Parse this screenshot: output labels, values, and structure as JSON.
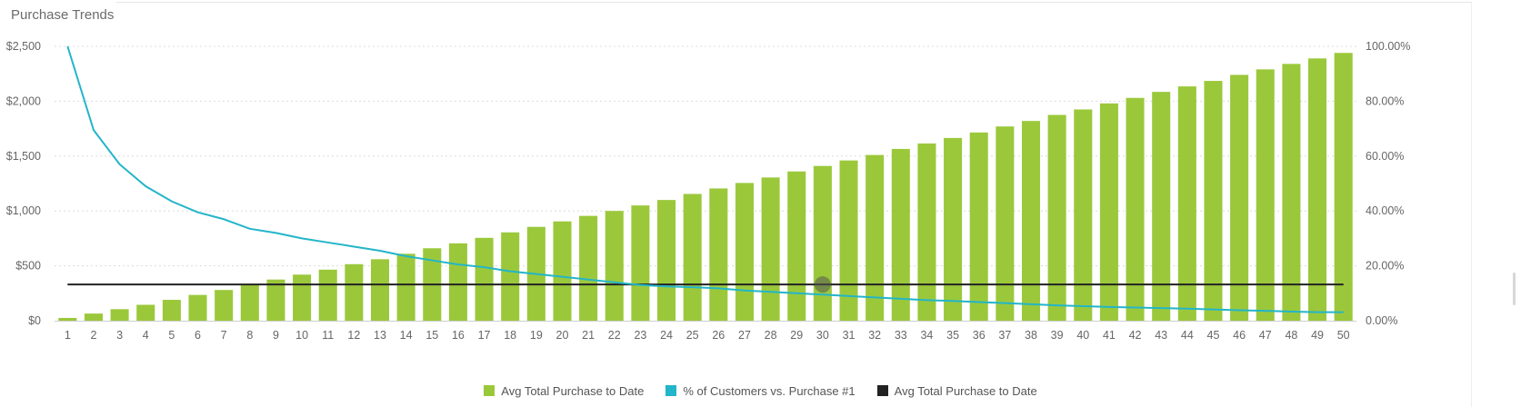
{
  "colors": {
    "bar": "#9bc83b",
    "line": "#23b5c9",
    "ref_line": "#222222",
    "grid": "#dcdcdc",
    "tick_text": "#666666"
  },
  "chart_data": {
    "type": "bar",
    "title": "Purchase Trends",
    "xlabel": "",
    "ylabel": "",
    "x": [
      1,
      2,
      3,
      4,
      5,
      6,
      7,
      8,
      9,
      10,
      11,
      12,
      13,
      14,
      15,
      16,
      17,
      18,
      19,
      20,
      21,
      22,
      23,
      24,
      25,
      26,
      27,
      28,
      29,
      30,
      31,
      32,
      33,
      34,
      35,
      36,
      37,
      38,
      39,
      40,
      41,
      42,
      43,
      44,
      45,
      46,
      47,
      48,
      49,
      50
    ],
    "ylim": [
      0,
      2500
    ],
    "y_ticks": [
      "$0",
      "$500",
      "$1,000",
      "$1,500",
      "$2,000",
      "$2,500"
    ],
    "y2lim": [
      0,
      100
    ],
    "y2_ticks": [
      "0.00%",
      "20.00%",
      "40.00%",
      "60.00%",
      "80.00%",
      "100.00%"
    ],
    "grid": true,
    "legend_position": "bottom-center",
    "series": [
      {
        "name": "Avg Total Purchase to Date",
        "type": "bar",
        "axis": "left",
        "values": [
          25,
          65,
          105,
          145,
          190,
          235,
          280,
          330,
          375,
          420,
          465,
          515,
          560,
          610,
          660,
          705,
          755,
          805,
          855,
          905,
          955,
          1000,
          1050,
          1100,
          1155,
          1205,
          1255,
          1305,
          1360,
          1410,
          1460,
          1510,
          1565,
          1615,
          1665,
          1715,
          1770,
          1820,
          1875,
          1925,
          1980,
          2030,
          2085,
          2135,
          2185,
          2240,
          2290,
          2340,
          2390,
          2440
        ]
      },
      {
        "name": "% of Customers vs. Purchase #1",
        "type": "line",
        "axis": "right",
        "values": [
          100,
          69.5,
          57,
          49,
          43.5,
          39.5,
          37,
          33.5,
          32,
          30,
          28.5,
          27,
          25.5,
          23.5,
          22,
          20.5,
          19.5,
          18,
          17,
          16,
          15,
          14,
          13,
          12.5,
          12.2,
          11.8,
          11,
          10.5,
          10,
          9.5,
          9,
          8.5,
          8,
          7.5,
          7.2,
          6.8,
          6.4,
          6,
          5.6,
          5.3,
          5,
          4.8,
          4.6,
          4.4,
          4.1,
          3.8,
          3.6,
          3.3,
          3.1,
          3.1
        ]
      },
      {
        "name": "Avg Total Purchase to Date",
        "type": "line",
        "axis": "left",
        "values": [
          330,
          330,
          330,
          330,
          330,
          330,
          330,
          330,
          330,
          330,
          330,
          330,
          330,
          330,
          330,
          330,
          330,
          330,
          330,
          330,
          330,
          330,
          330,
          330,
          330,
          330,
          330,
          330,
          330,
          330,
          330,
          330,
          330,
          330,
          330,
          330,
          330,
          330,
          330,
          330,
          330,
          330,
          330,
          330,
          330,
          330,
          330,
          330,
          330,
          330
        ]
      }
    ],
    "hover_point": {
      "x": 30,
      "y": 330
    }
  }
}
